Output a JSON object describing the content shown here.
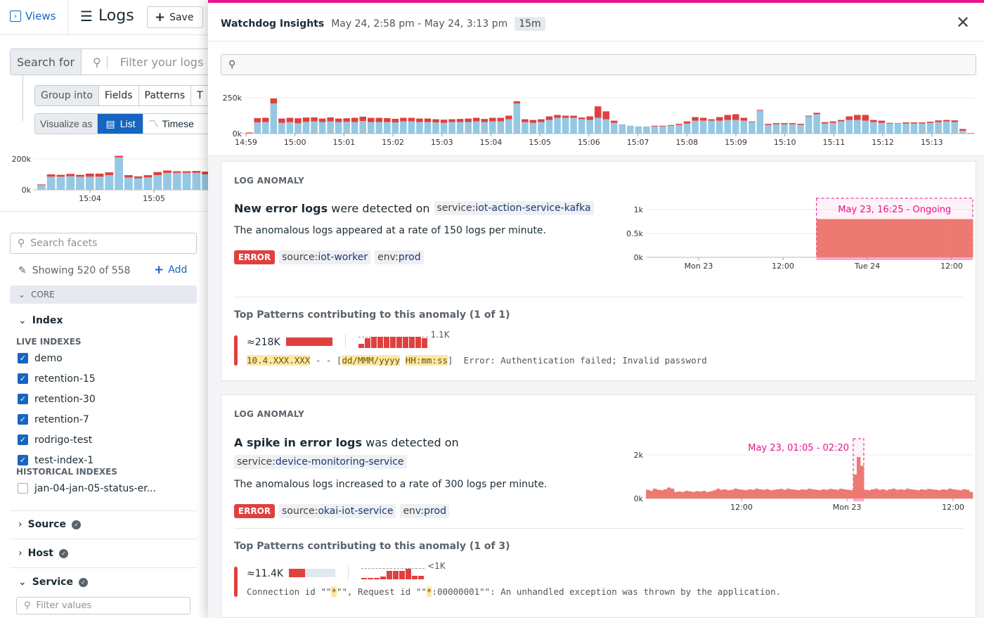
{
  "colors": {
    "accent": "#e8128c",
    "blue": "#1665c0",
    "info_bar": "#95c8e3",
    "error_bar": "#e0403e",
    "anomaly_fill": "#ec7a72"
  },
  "sidebar": {
    "views_label": "Views",
    "title": "Logs",
    "save_label": "Save",
    "search_for_label": "Search for",
    "filter_placeholder": "Filter your logs",
    "group_into_label": "Group into",
    "group_options": [
      "Fields",
      "Patterns",
      "T"
    ],
    "visualize_label": "Visualize as",
    "visualize_options": [
      "List",
      "Timese"
    ],
    "mini_chart": {
      "yticks": [
        "200k",
        "0k"
      ],
      "xticks": [
        "15:04",
        "15:05"
      ],
      "ymax": 200,
      "info": [
        30,
        85,
        85,
        88,
        85,
        85,
        85,
        95,
        210,
        80,
        75,
        80,
        95,
        110,
        110,
        110,
        110,
        100
      ],
      "error": [
        5,
        15,
        12,
        15,
        12,
        20,
        20,
        18,
        10,
        15,
        12,
        15,
        20,
        15,
        10,
        10,
        12,
        18
      ]
    },
    "facet_search_placeholder": "Search facets",
    "showing": "Showing 520 of 558",
    "add_label": "Add",
    "core_label": "CORE",
    "index_label": "Index",
    "live_indexes_label": "LIVE INDEXES",
    "live_indexes": [
      "demo",
      "retention-15",
      "retention-30",
      "retention-7",
      "rodrigo-test",
      "test-index-1"
    ],
    "historical_indexes_label": "HISTORICAL INDEXES",
    "historical_indexes": [
      "jan-04-jan-05-status-er..."
    ],
    "facets": [
      "Source",
      "Host",
      "Service"
    ],
    "filter_values_placeholder": "Filter values"
  },
  "panel": {
    "title": "Watchdog Insights",
    "range": "May 24, 2:58 pm - May 24, 3:13 pm",
    "duration": "15m",
    "search_placeholder": "",
    "histogram": {
      "type": "bar",
      "stacked": true,
      "yticks": [
        "250k",
        "0k"
      ],
      "ymax": 250,
      "xticks": [
        "14:59",
        "15:00",
        "15:01",
        "15:02",
        "15:03",
        "15:04",
        "15:05",
        "15:06",
        "15:07",
        "15:08",
        "15:09",
        "15:10",
        "15:11",
        "15:12",
        "15:13"
      ],
      "info": [
        3,
        78,
        80,
        210,
        75,
        80,
        72,
        82,
        85,
        80,
        85,
        80,
        82,
        80,
        88,
        80,
        80,
        80,
        78,
        85,
        85,
        80,
        80,
        78,
        75,
        80,
        80,
        80,
        85,
        80,
        85,
        85,
        100,
        210,
        80,
        75,
        80,
        95,
        110,
        110,
        110,
        100,
        95,
        110,
        100,
        75,
        65,
        55,
        50,
        50,
        50,
        50,
        55,
        60,
        70,
        90,
        90,
        90,
        90,
        95,
        95,
        90,
        80,
        160,
        60,
        65,
        65,
        65,
        60,
        120,
        135,
        70,
        75,
        85,
        95,
        95,
        90,
        80,
        75,
        70,
        70,
        70,
        70,
        70,
        75,
        80,
        85,
        80,
        20,
        0
      ],
      "error": [
        5,
        30,
        30,
        35,
        30,
        30,
        35,
        30,
        28,
        25,
        28,
        25,
        25,
        30,
        30,
        30,
        30,
        28,
        25,
        25,
        25,
        25,
        25,
        22,
        22,
        20,
        22,
        25,
        25,
        22,
        25,
        25,
        25,
        15,
        20,
        20,
        20,
        25,
        20,
        15,
        15,
        12,
        25,
        80,
        55,
        15,
        0,
        0,
        0,
        0,
        5,
        5,
        5,
        8,
        15,
        25,
        20,
        10,
        25,
        35,
        40,
        20,
        5,
        5,
        8,
        8,
        8,
        8,
        8,
        5,
        10,
        10,
        10,
        10,
        25,
        35,
        40,
        15,
        15,
        5,
        3,
        8,
        8,
        8,
        8,
        12,
        10,
        12,
        12,
        3
      ]
    },
    "anomalies": [
      {
        "label": "LOG ANOMALY",
        "title_bold": "New error logs",
        "title_rest": " were detected on",
        "service_key": "service:",
        "service_val": "iot-action-service-kafka",
        "description": "The anomalous logs appeared at a rate of 150 logs per minute.",
        "status": "ERROR",
        "source_key": "source:",
        "source_val": "iot-worker",
        "env_key": "env:",
        "env_val": "prod",
        "chart": {
          "yticks": [
            "1k",
            "0.5k",
            "0k"
          ],
          "ymax": 1.2,
          "xticks": [
            "Mon 23",
            "12:00",
            "Tue 24",
            "12:00"
          ],
          "annotation": "May 23, 16:25 - Ongoing",
          "values": [
            0,
            0,
            0,
            0,
            0,
            0,
            0,
            0,
            0,
            0,
            0,
            0,
            0,
            0,
            0,
            0,
            0,
            0,
            0,
            0,
            0,
            0,
            0,
            0,
            0.8,
            0.8,
            0.8,
            0.8,
            0.8,
            0.8,
            0.8,
            0.8,
            0.8,
            0.8,
            0.8,
            0.8,
            0.8,
            0.8,
            0.8,
            0.8,
            0.8,
            0.8,
            0.8,
            0.8,
            0.8,
            0.8
          ],
          "anomaly_from": 24,
          "anomaly_to": 46
        },
        "patterns_title": "Top Patterns contributing to this anomaly (1 of 1)",
        "pattern": {
          "count": "≈218K",
          "share": 1.0,
          "peak": "1.1K",
          "sparkline": [
            0.4,
            0.85,
            1,
            1,
            1,
            1,
            1,
            1,
            1,
            1,
            0.9
          ],
          "segments": [
            {
              "t": "10.4.XXX.XXX",
              "h": true
            },
            {
              "t": " - - [",
              "h": false
            },
            {
              "t": "dd/MMM/yyyy",
              "h": true
            },
            {
              "t": " ",
              "h": false
            },
            {
              "t": "HH:mm:ss",
              "h": true
            },
            {
              "t": "]  Error: Authentication failed; Invalid password",
              "h": false
            }
          ]
        }
      },
      {
        "label": "LOG ANOMALY",
        "title_bold": "A spike in error logs",
        "title_rest": " was detected on",
        "service_key": "service:",
        "service_val": "device-monitoring-service",
        "description": "The anomalous logs increased to a rate of 300 logs per minute.",
        "status": "ERROR",
        "source_key": "source:",
        "source_val": "okai-iot-service",
        "env_key": "env:",
        "env_val": "prod",
        "chart": {
          "yticks": [
            "2k",
            "0k"
          ],
          "ymax": 2,
          "xticks": [
            "12:00",
            "Mon 23",
            "12:00"
          ],
          "annotation": "May 23, 01:05 - 02:20",
          "values": [
            0.4,
            0.35,
            0.45,
            0.4,
            0.38,
            0.42,
            0.5,
            0.45,
            0.3,
            0.32,
            0.3,
            0.35,
            0.33,
            0.3,
            0.34,
            0.32,
            0.35,
            0.3,
            0.33,
            0.38,
            0.45,
            0.4,
            0.42,
            0.38,
            0.4,
            0.45,
            0.42,
            0.4,
            0.38,
            0.42,
            0.4,
            0.45,
            0.42,
            0.4,
            0.43,
            0.38,
            0.4,
            0.42,
            0.44,
            0.4,
            0.45,
            0.42,
            0.4,
            0.38,
            0.42,
            0.4,
            0.45,
            0.42,
            0.4,
            0.38,
            0.42,
            0.4,
            0.44,
            0.42,
            0.4,
            0.45,
            0.42,
            0.4,
            0.38,
            1.1,
            1.9,
            1.5,
            0.4,
            0.38,
            0.42,
            0.45,
            0.4,
            0.42,
            0.38,
            0.42,
            0.45,
            0.4,
            0.42,
            0.4,
            0.45,
            0.42,
            0.4,
            0.38,
            0.42,
            0.4,
            0.44,
            0.42,
            0.4,
            0.38,
            0.42,
            0.4,
            0.45,
            0.42,
            0.4,
            0.38,
            0.42,
            0.4,
            0.3
          ],
          "anomaly_from": 59,
          "anomaly_to": 62
        },
        "patterns_title": "Top Patterns contributing to this anomaly (1 of 3)",
        "pattern": {
          "count": "≈11.4K",
          "share": 0.35,
          "peak": "<1K",
          "sparkline": [
            0.15,
            0.15,
            0.15,
            0.25,
            0.75,
            0.75,
            0.75,
            0.95,
            0.3,
            0.3
          ],
          "segments": [
            {
              "t": "Connection id \"\"",
              "h": false
            },
            {
              "t": "*",
              "h": true
            },
            {
              "t": "\"\", Request id \"\"",
              "h": false
            },
            {
              "t": "*",
              "h": true
            },
            {
              "t": ":00000001\"\": An unhandled exception was thrown by the application.",
              "h": false
            }
          ]
        }
      }
    ]
  }
}
